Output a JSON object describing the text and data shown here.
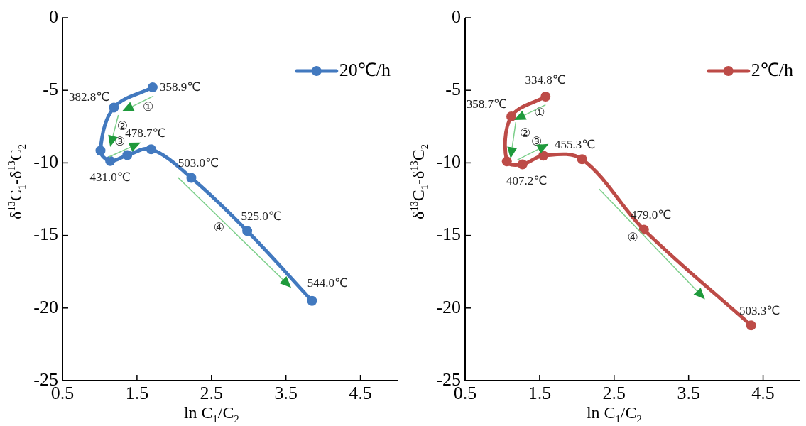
{
  "chart_data": [
    {
      "type": "line",
      "xlabel": "ln C$_{1}$/C$_{2}$",
      "ylabel": "δ$^{13}$C$_{1}$-δ$^{13}$C$_{2}$",
      "xlim": [
        0.5,
        5.0
      ],
      "xticks": [
        0.5,
        1.5,
        2.5,
        3.5,
        4.5
      ],
      "ylim": [
        -25,
        0
      ],
      "yticks": [
        -25,
        -20,
        -15,
        -10,
        -5,
        0
      ],
      "grid": false,
      "legend": "top right",
      "marker": "circle",
      "line_style": "solid",
      "series": [
        {
          "name": "20℃/h",
          "color": "#4279bf",
          "x": [
            1.71,
            1.19,
            1.01,
            1.14,
            1.37,
            1.69,
            2.23,
            2.98,
            3.85
          ],
          "values": [
            -4.8,
            -6.19,
            -9.16,
            -9.87,
            -9.47,
            -9.06,
            -11.03,
            -14.69,
            -19.51
          ]
        }
      ],
      "annotations": [
        {
          "text": "358.9℃",
          "x": 1.71,
          "y": -4.8
        },
        {
          "text": "382.8℃",
          "x": 1.19,
          "y": -6.19
        },
        {
          "text": "431.0℃",
          "x": 1.14,
          "y": -9.87
        },
        {
          "text": "478.7℃",
          "x": 1.69,
          "y": -9.06
        },
        {
          "text": "503.0℃",
          "x": 2.23,
          "y": -11.03
        },
        {
          "text": "525.0℃",
          "x": 2.98,
          "y": -14.69
        },
        {
          "text": "544.0℃",
          "x": 3.85,
          "y": -19.51
        },
        "①",
        {
          "text": "②",
          "x": 1.01,
          "y": -9.16
        },
        "③",
        "④"
      ]
    },
    {
      "type": "line",
      "xlabel": "ln C$_{1}$/C$_{2}$",
      "ylabel": "δ$^{13}$C$_{1}$-δ$^{13}$C$_{2}$",
      "xlim": [
        0.5,
        5.0
      ],
      "xticks": [
        0.5,
        1.5,
        2.5,
        3.5,
        4.5
      ],
      "ylim": [
        -25,
        0
      ],
      "yticks": [
        -25,
        -20,
        -15,
        -10,
        -5,
        0
      ],
      "grid": false,
      "legend": "top right",
      "marker": "circle",
      "line_style": "solid",
      "series": [
        {
          "name": "2℃/h",
          "color": "#bd4b47",
          "x": [
            1.58,
            1.12,
            1.06,
            1.27,
            1.55,
            2.07,
            2.9,
            4.34
          ],
          "values": [
            -5.43,
            -6.8,
            -9.9,
            -10.1,
            -9.5,
            -9.75,
            -14.6,
            -21.2
          ]
        }
      ],
      "annotations": [
        {
          "text": "334.8℃",
          "x": 1.58,
          "y": -5.43
        },
        {
          "text": "358.7℃",
          "x": 1.12,
          "y": -6.8
        },
        {
          "text": "407.2℃",
          "x": 1.27,
          "y": -10.1
        },
        {
          "text": "455.3℃",
          "x": 2.07,
          "y": -9.75
        },
        {
          "text": "479.0℃",
          "x": 2.9,
          "y": -14.6
        },
        {
          "text": "503.3℃",
          "x": 4.34,
          "y": -21.2
        },
        "①",
        {
          "text": "②",
          "x": 1.06,
          "y": -9.9
        },
        "③",
        "④"
      ]
    }
  ]
}
